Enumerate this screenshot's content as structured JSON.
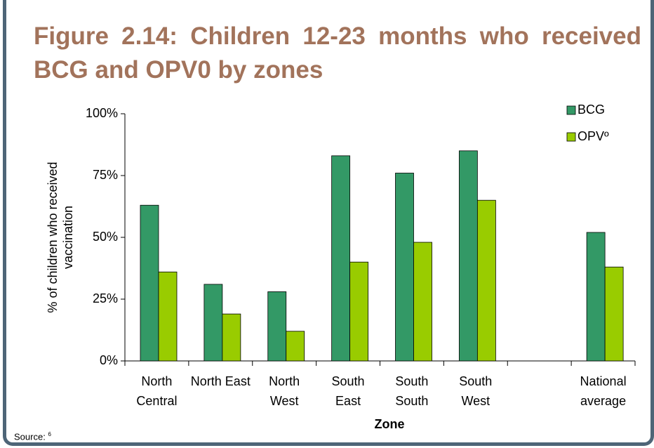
{
  "chart_data": {
    "type": "bar",
    "title": "Figure 2.14: Children 12-23 months who received BCG and OPV0 by zones",
    "categories": [
      "North Central",
      "North East",
      "North West",
      "South East",
      "South South",
      "South West",
      null,
      "National average"
    ],
    "series": [
      {
        "name": "BCG",
        "color": "#339966",
        "values": [
          63,
          31,
          28,
          83,
          76,
          85,
          null,
          52
        ]
      },
      {
        "name": "OPVº",
        "color": "#99cc00",
        "values": [
          36,
          19,
          12,
          40,
          48,
          65,
          null,
          38
        ]
      }
    ],
    "ylim": [
      0,
      100
    ],
    "yticks": [
      {
        "value": 0,
        "label": "0%"
      },
      {
        "value": 25,
        "label": "25%"
      },
      {
        "value": 50,
        "label": "50%"
      },
      {
        "value": 75,
        "label": "75%"
      },
      {
        "value": 100,
        "label": "100%"
      }
    ],
    "xlabel": "Zone",
    "ylabel": "% of children who received vaccination",
    "legend": "top-right",
    "source": "Source:",
    "source_ref": "6"
  }
}
